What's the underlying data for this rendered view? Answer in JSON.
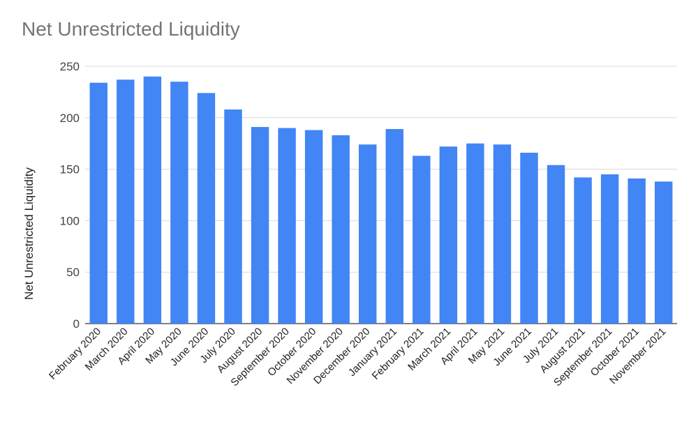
{
  "chart_data": {
    "type": "bar",
    "title": "Net Unrestricted Liquidity",
    "xlabel": "",
    "ylabel": "Net Unrestricted Liquidity",
    "ylim": [
      0,
      250
    ],
    "yticks": [
      0,
      50,
      100,
      150,
      200,
      250
    ],
    "grid": true,
    "legend": "none",
    "bar_color": "#4285f4",
    "categories": [
      "February 2020",
      "March 2020",
      "April 2020",
      "May 2020",
      "June 2020",
      "July 2020",
      "August 2020",
      "September 2020",
      "October 2020",
      "November 2020",
      "December 2020",
      "January 2021",
      "February 2021",
      "March 2021",
      "April 2021",
      "May 2021",
      "June 2021",
      "July 2021",
      "August 2021",
      "September 2021",
      "October 2021",
      "November 2021"
    ],
    "values": [
      234,
      237,
      240,
      235,
      224,
      208,
      191,
      190,
      188,
      183,
      174,
      189,
      163,
      172,
      175,
      174,
      166,
      154,
      142,
      145,
      141,
      138
    ]
  }
}
